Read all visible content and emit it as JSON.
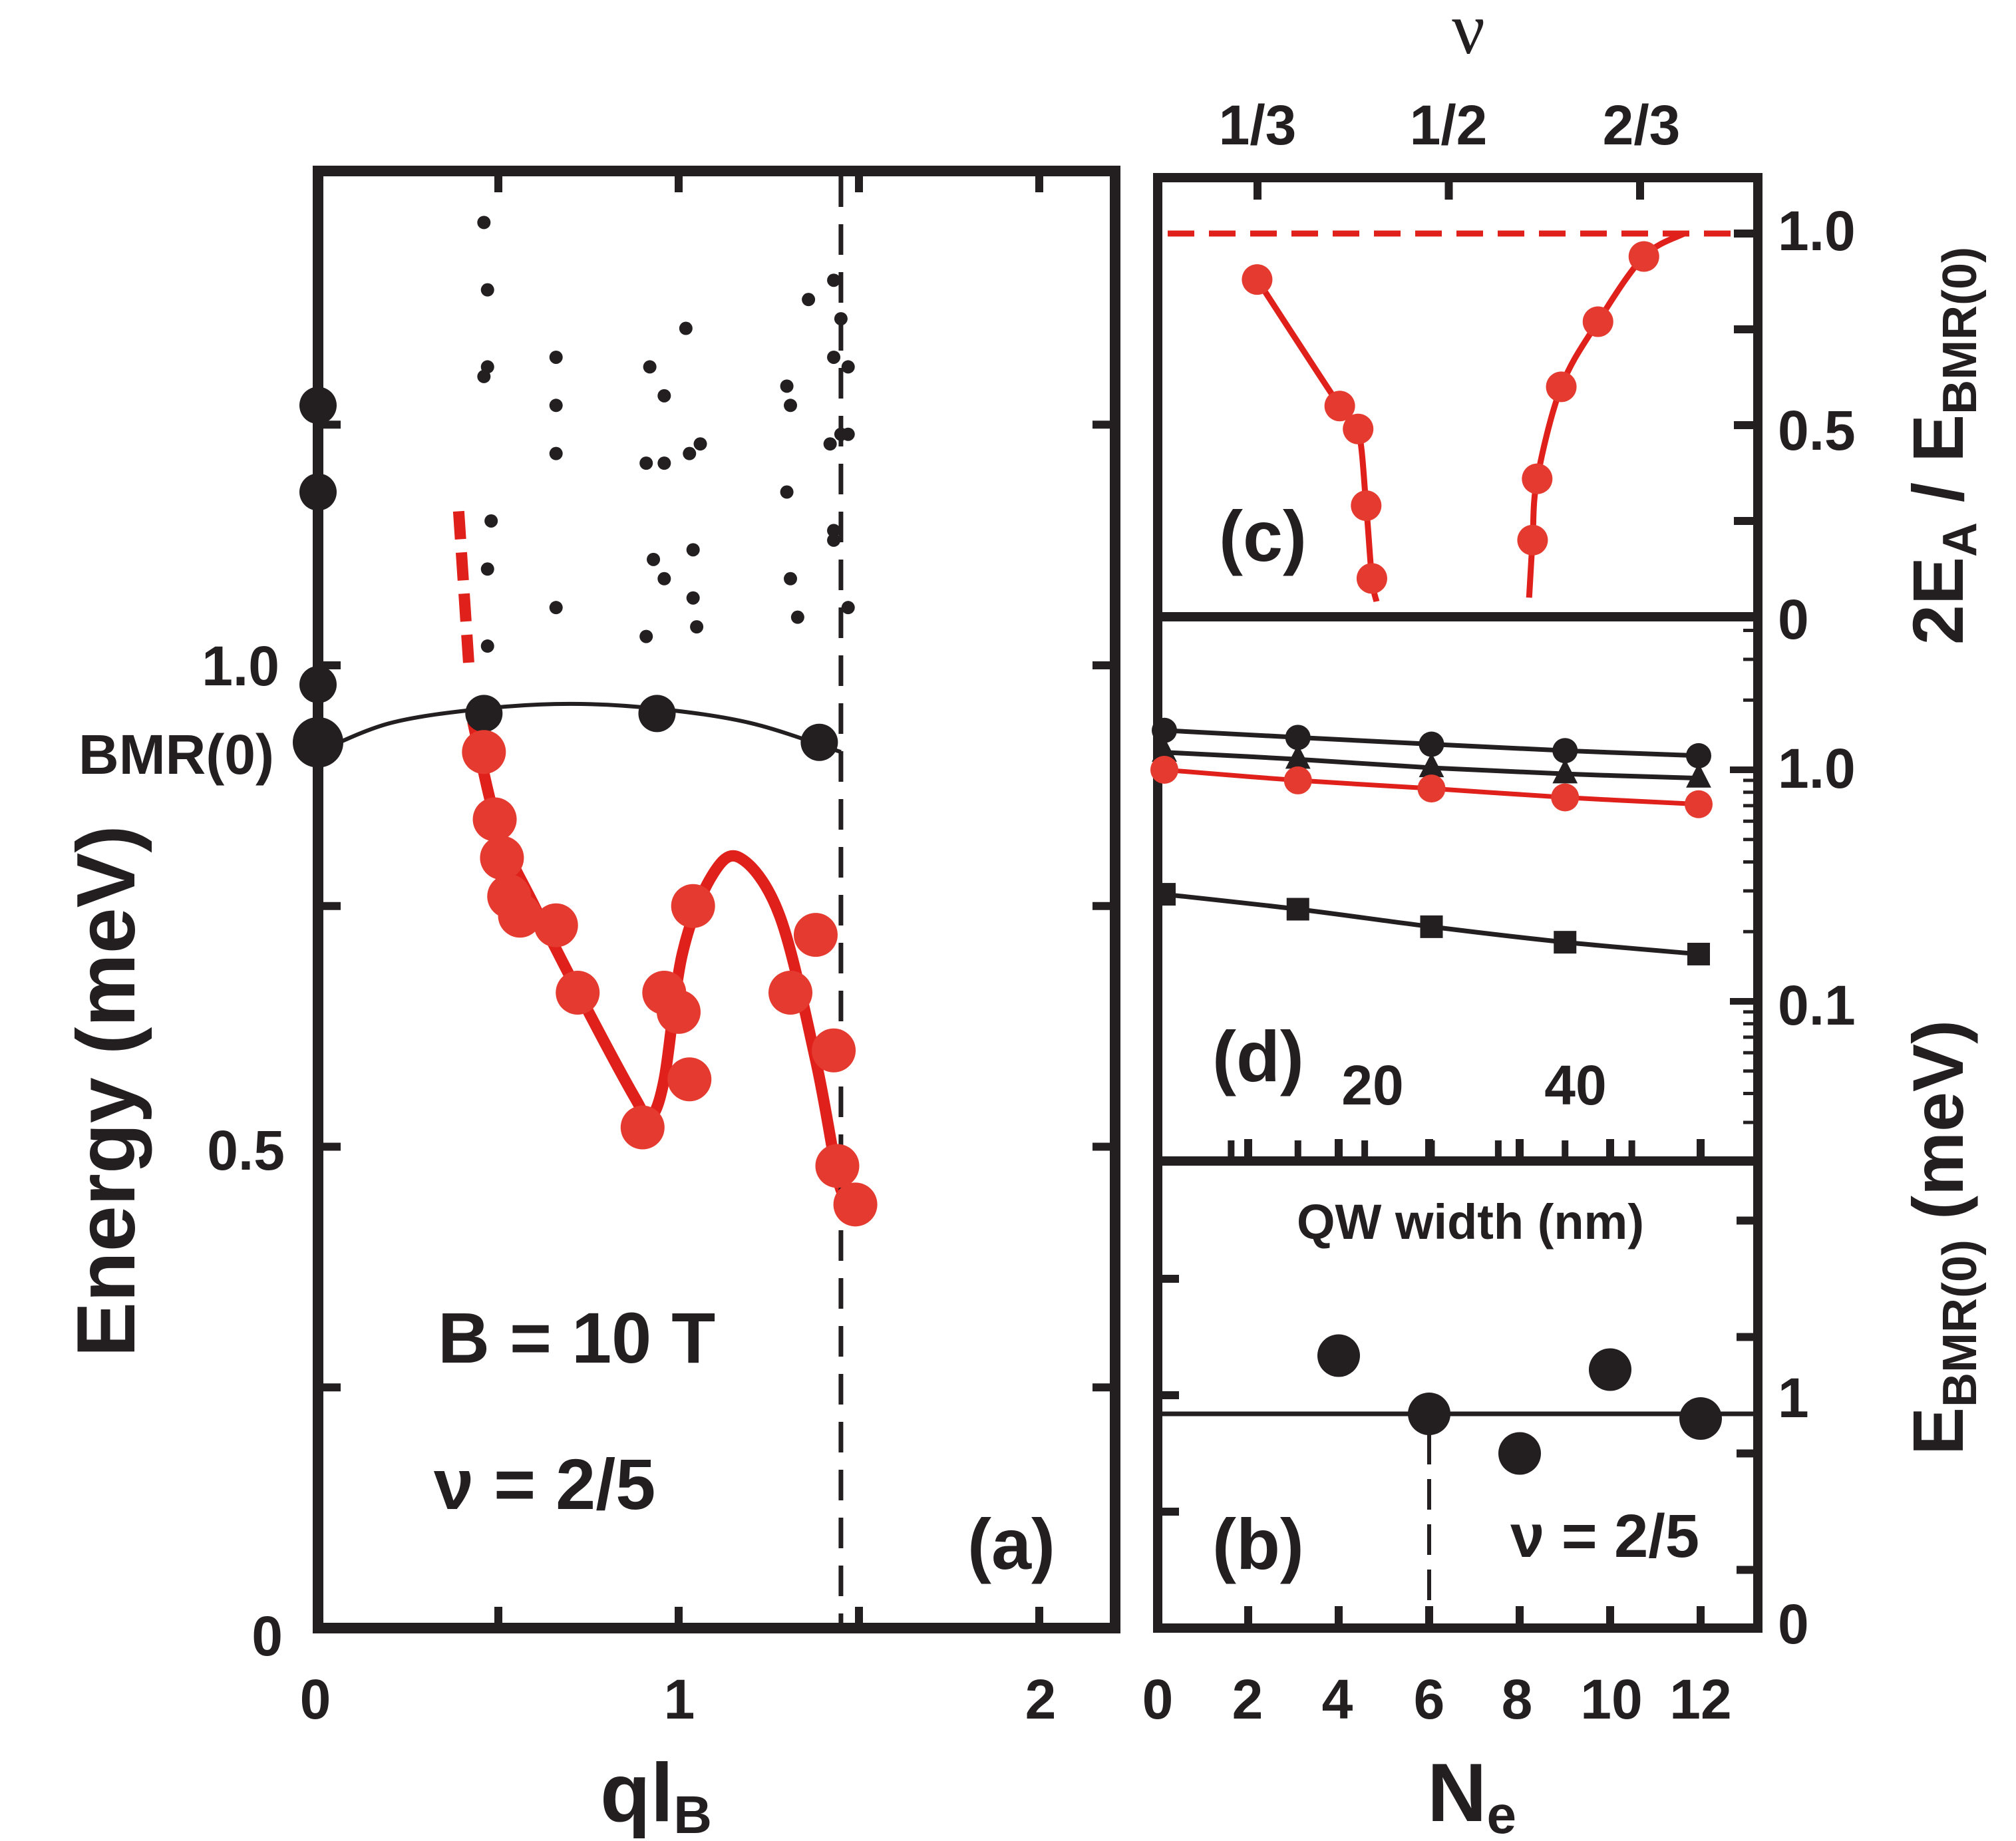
{
  "colors": {
    "black": "#231f20",
    "red": "#e0201b",
    "red_marker": "#e53a2f"
  },
  "chart_data": [
    {
      "panel": "a",
      "type": "scatter",
      "panel_label": "(a)",
      "xlabel": "ql",
      "xlabel_sub": "B",
      "ylabel": "Energy (meV)",
      "xlim": [
        0,
        2.2
      ],
      "ylim": [
        0,
        1.5
      ],
      "xticks": [
        "0",
        "1",
        "2"
      ],
      "yticks": [
        "0",
        "0.5",
        "1.0"
      ],
      "bmr_label": "BMR(0)",
      "annotation_field": "B = 10 T",
      "annotation_nu": "ν = 2/5",
      "vline_x": 1.45,
      "series": [
        {
          "marker": "large-black-circle",
          "points": [
            [
              0,
              1.27
            ],
            [
              0,
              1.18
            ],
            [
              0,
              0.98
            ],
            [
              0,
              0.92
            ],
            [
              0.46,
              0.95
            ],
            [
              0.94,
              0.95
            ],
            [
              1.39,
              0.92
            ]
          ]
        },
        {
          "marker": "large-red-circle",
          "points": [
            [
              0.46,
              0.91
            ],
            [
              0.49,
              0.84
            ],
            [
              0.51,
              0.8
            ],
            [
              0.53,
              0.76
            ],
            [
              0.56,
              0.74
            ],
            [
              0.66,
              0.73
            ],
            [
              0.72,
              0.66
            ],
            [
              0.9,
              0.52
            ],
            [
              0.96,
              0.66
            ],
            [
              1.0,
              0.64
            ],
            [
              1.03,
              0.57
            ],
            [
              1.04,
              0.75
            ],
            [
              1.31,
              0.66
            ],
            [
              1.38,
              0.72
            ],
            [
              1.43,
              0.6
            ],
            [
              1.44,
              0.48
            ],
            [
              1.49,
              0.44
            ]
          ]
        },
        {
          "marker": "small-black-dot",
          "points": [
            [
              0.46,
              1.46
            ],
            [
              0.47,
              1.39
            ],
            [
              0.47,
              1.31
            ],
            [
              0.46,
              1.3
            ],
            [
              0.48,
              1.15
            ],
            [
              0.47,
              1.1
            ],
            [
              0.47,
              1.02
            ],
            [
              0.66,
              1.32
            ],
            [
              0.66,
              1.27
            ],
            [
              0.66,
              1.22
            ],
            [
              0.66,
              1.06
            ],
            [
              0.92,
              1.31
            ],
            [
              0.96,
              1.28
            ],
            [
              0.91,
              1.21
            ],
            [
              0.96,
              1.21
            ],
            [
              0.93,
              1.11
            ],
            [
              0.96,
              1.09
            ],
            [
              0.91,
              1.03
            ],
            [
              1.02,
              1.35
            ],
            [
              1.03,
              1.22
            ],
            [
              1.06,
              1.23
            ],
            [
              1.04,
              1.12
            ],
            [
              1.04,
              1.07
            ],
            [
              1.05,
              1.04
            ],
            [
              1.3,
              1.29
            ],
            [
              1.31,
              1.27
            ],
            [
              1.3,
              1.18
            ],
            [
              1.31,
              1.09
            ],
            [
              1.33,
              1.05
            ],
            [
              1.36,
              1.38
            ],
            [
              1.43,
              1.4
            ],
            [
              1.43,
              1.32
            ],
            [
              1.43,
              1.14
            ],
            [
              1.43,
              1.13
            ],
            [
              1.45,
              1.36
            ],
            [
              1.42,
              1.23
            ],
            [
              1.45,
              1.24
            ],
            [
              1.47,
              1.31
            ],
            [
              1.47,
              1.24
            ],
            [
              1.47,
              1.06
            ]
          ]
        }
      ],
      "curves": [
        {
          "style": "black-solid",
          "points": [
            [
              0,
              0.91
            ],
            [
              0.2,
              0.94
            ],
            [
              0.46,
              0.955
            ],
            [
              0.7,
              0.96
            ],
            [
              0.94,
              0.955
            ],
            [
              1.2,
              0.94
            ],
            [
              1.45,
              0.91
            ]
          ]
        },
        {
          "style": "red-dashed",
          "points": [
            [
              0.39,
              1.16
            ],
            [
              0.42,
              0.99
            ]
          ]
        },
        {
          "style": "red-solid",
          "points": [
            [
              0.43,
              0.94
            ],
            [
              0.5,
              0.83
            ],
            [
              0.6,
              0.75
            ],
            [
              0.75,
              0.64
            ],
            [
              0.88,
              0.55
            ],
            [
              0.92,
              0.53
            ],
            [
              0.96,
              0.57
            ],
            [
              1.01,
              0.7
            ],
            [
              1.09,
              0.78
            ],
            [
              1.17,
              0.8
            ],
            [
              1.28,
              0.74
            ],
            [
              1.38,
              0.59
            ],
            [
              1.44,
              0.47
            ],
            [
              1.46,
              0.45
            ]
          ]
        }
      ]
    },
    {
      "panel": "c",
      "type": "scatter",
      "panel_label": "(c)",
      "top_axis_label": "ν",
      "top_ticks": [
        "1/3",
        "1/2",
        "2/3"
      ],
      "ylabel_right": "2E_A / E_BMR(0)",
      "ylabel_right_parts": [
        "2E",
        "A",
        " / E",
        "BMR(0)"
      ],
      "ylim": [
        0,
        1.1
      ],
      "yticks": [
        "0",
        "0.5",
        "1.0"
      ],
      "reference_line_y": 1.0,
      "series": [
        {
          "marker": "red-circle",
          "nu": [
            "1/3",
            "≈0.40",
            "≈0.43",
            "≈0.43",
            "≈0.44",
            "≈0.58",
            "≈0.59",
            "≈0.61",
            "≈0.63",
            "≈0.67"
          ],
          "points": [
            [
              0.333,
              0.88
            ],
            [
              0.405,
              0.55
            ],
            [
              0.421,
              0.49
            ],
            [
              0.428,
              0.29
            ],
            [
              0.433,
              0.1
            ],
            [
              0.573,
              0.2
            ],
            [
              0.577,
              0.36
            ],
            [
              0.598,
              0.6
            ],
            [
              0.63,
              0.77
            ],
            [
              0.67,
              0.94
            ]
          ]
        }
      ]
    },
    {
      "panel": "d",
      "type": "line",
      "panel_label": "(d)",
      "xlabel": "QW width (nm)",
      "xticks": [
        "20",
        "40"
      ],
      "yscale": "log",
      "yticks": [
        "0.1",
        "1.0"
      ],
      "ylim": [
        0.04,
        2.8
      ],
      "series": [
        {
          "marker": "black-circle",
          "x": [
            10,
            20,
            30,
            40,
            50
          ],
          "y": [
            1.48,
            1.38,
            1.29,
            1.21,
            1.15
          ]
        },
        {
          "marker": "black-triangle",
          "x": [
            10,
            20,
            30,
            40,
            50
          ],
          "y": [
            1.19,
            1.11,
            1.02,
            0.96,
            0.92
          ]
        },
        {
          "marker": "red-circle",
          "x": [
            10,
            20,
            30,
            40,
            50
          ],
          "y": [
            1.0,
            0.9,
            0.83,
            0.76,
            0.71
          ]
        },
        {
          "marker": "black-square",
          "x": [
            10,
            20,
            30,
            40,
            50
          ],
          "y": [
            0.29,
            0.25,
            0.21,
            0.18,
            0.16
          ]
        }
      ]
    },
    {
      "panel": "b",
      "type": "scatter",
      "panel_label": "(b)",
      "annotation_nu": "ν = 2/5",
      "xlabel": "N",
      "xlabel_sub": "e",
      "xticks": [
        "0",
        "2",
        "4",
        "6",
        "8",
        "10",
        "12"
      ],
      "ylabel_right": "E_BMR(0) (meV)",
      "ylabel_right_parts": [
        "E",
        "BMR(0)",
        " (meV)"
      ],
      "yticks": [
        "0",
        "1"
      ],
      "ylim": [
        0,
        2
      ],
      "hline_y": 0.92,
      "vline_x": 6,
      "series": [
        {
          "marker": "black-circle",
          "x": [
            4,
            6,
            8,
            10,
            12
          ],
          "y": [
            1.17,
            0.92,
            0.75,
            1.11,
            0.9
          ]
        }
      ]
    }
  ]
}
